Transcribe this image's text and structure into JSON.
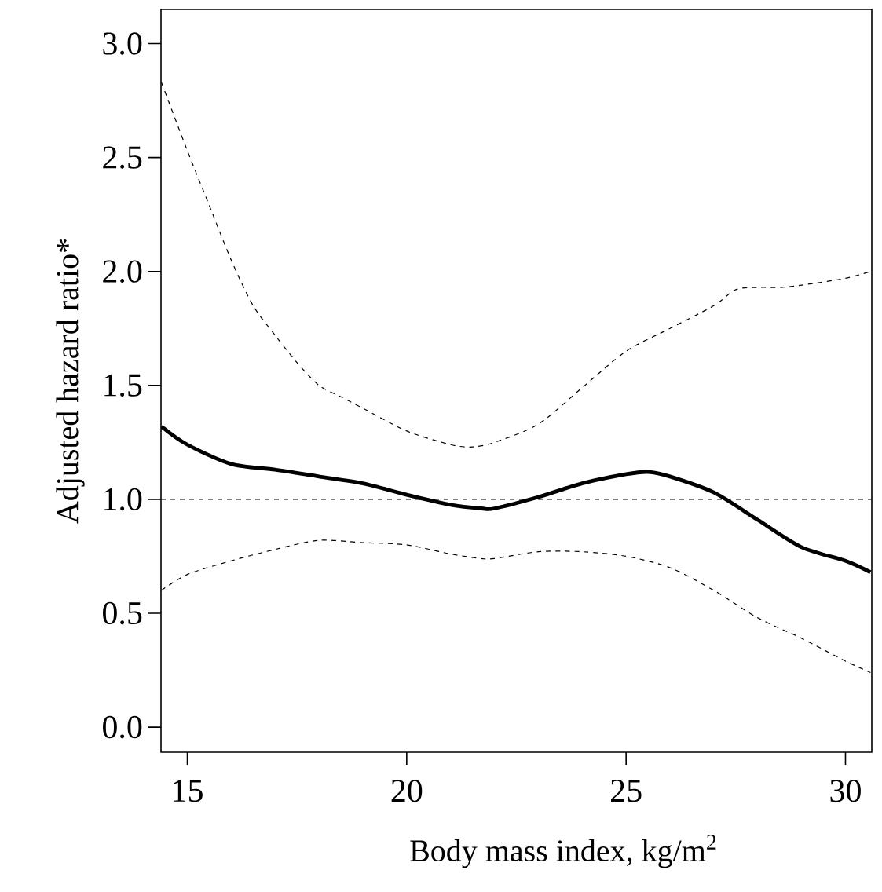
{
  "chart_data": {
    "type": "line",
    "xlabel": "Body mass index, kg/m$^{2}$",
    "ylabel": "Adjusted hazard ratio*",
    "xlim": [
      14.4,
      30.6
    ],
    "ylim": [
      -0.11,
      3.15
    ],
    "xticks": [
      15,
      20,
      25,
      30
    ],
    "yticks": [
      {
        "value": 0,
        "label": "0.0"
      },
      0.5,
      {
        "value": 1,
        "label": "1.0"
      },
      1.5,
      {
        "value": 2,
        "label": "2.0"
      },
      2.5,
      {
        "value": 3,
        "label": "3.0"
      }
    ],
    "ref_lines": [
      {
        "axis": "y",
        "value": 1,
        "line_style": "dashed"
      }
    ],
    "series": [
      {
        "color": "#000000",
        "line_style": "solid",
        "x": [
          14.41,
          15,
          16,
          17,
          18,
          19,
          20,
          21,
          21.7,
          22,
          23,
          24,
          25,
          25.5,
          26,
          27,
          28,
          29,
          30,
          30.57
        ],
        "values": [
          1.32,
          1.24,
          1.155,
          1.13,
          1.1,
          1.07,
          1.02,
          0.976,
          0.96,
          0.96,
          1.01,
          1.07,
          1.11,
          1.12,
          1.1,
          1.03,
          0.91,
          0.79,
          0.73,
          0.68
        ]
      },
      {
        "color": "#000000",
        "line_style": "dashed",
        "x": [
          14.41,
          15,
          15.5,
          16,
          16.5,
          17,
          17.5,
          18,
          18.5,
          19,
          20,
          21,
          21.5,
          22,
          23,
          24,
          25,
          26,
          27,
          27.5,
          28,
          28.5,
          29,
          30,
          30.57
        ],
        "values": [
          2.83,
          2.53,
          2.29,
          2.05,
          1.85,
          1.72,
          1.6,
          1.5,
          1.45,
          1.4,
          1.3,
          1.24,
          1.23,
          1.25,
          1.33,
          1.49,
          1.65,
          1.75,
          1.85,
          1.92,
          1.93,
          1.93,
          1.94,
          1.97,
          2.0
        ]
      },
      {
        "color": "#000000",
        "line_style": "dashed",
        "x": [
          14.41,
          15,
          16,
          17,
          18,
          19,
          20,
          21,
          21.7,
          22,
          23,
          24,
          25,
          26,
          27,
          28,
          29,
          30,
          30.57
        ],
        "values": [
          0.6,
          0.67,
          0.73,
          0.78,
          0.82,
          0.81,
          0.8,
          0.76,
          0.74,
          0.74,
          0.77,
          0.77,
          0.75,
          0.7,
          0.6,
          0.48,
          0.39,
          0.29,
          0.24
        ]
      }
    ]
  }
}
